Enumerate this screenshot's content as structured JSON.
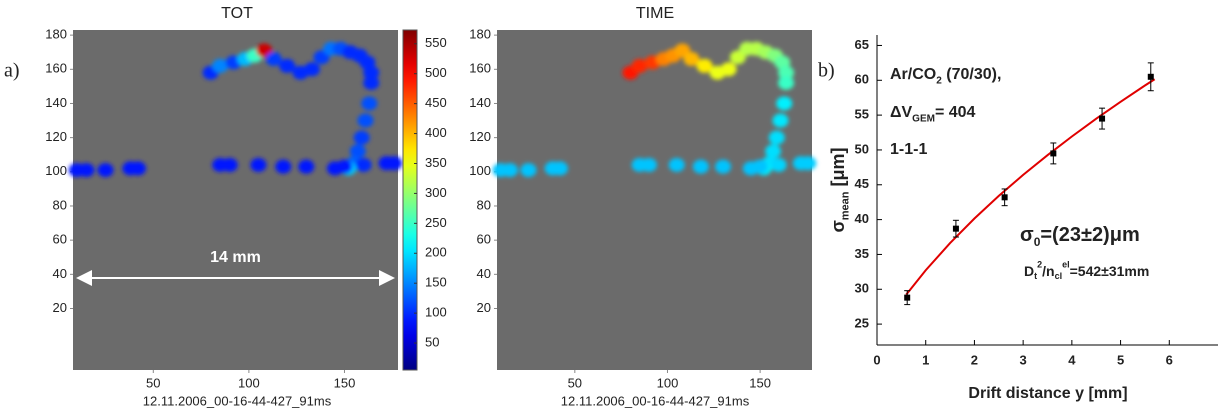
{
  "chart_data": [
    {
      "type": "heatmap",
      "title": "TOT",
      "label": "a)",
      "x_label": "12.11.2006_00-16-44-427_91ms",
      "xlim": [
        8,
        178
      ],
      "ylim": [
        -16,
        183
      ],
      "xticks": [
        50,
        100,
        150
      ],
      "yticks": [
        20,
        40,
        60,
        80,
        100,
        120,
        140,
        160,
        180
      ],
      "background": "#6b6b6b",
      "colormap": "jet",
      "clim": [
        5,
        573
      ],
      "colorbar_ticks": [
        50,
        100,
        150,
        200,
        250,
        300,
        350,
        400,
        450,
        500,
        550
      ],
      "annotations": [
        {
          "text": "14 mm"
        }
      ],
      "x": [
        80,
        85,
        92,
        98,
        103,
        108,
        113,
        120,
        127,
        133,
        138,
        143,
        148,
        153,
        158,
        162,
        164,
        164,
        163,
        161,
        159,
        157,
        155,
        152,
        10,
        15,
        25,
        38,
        42,
        85,
        90,
        105,
        118,
        130,
        145,
        150,
        160,
        172,
        176
      ],
      "y": [
        158,
        162,
        164,
        166,
        168,
        171,
        166,
        162,
        158,
        160,
        167,
        172,
        172,
        170,
        168,
        164,
        158,
        152,
        140,
        130,
        120,
        112,
        105,
        102,
        101,
        101,
        101,
        102,
        102,
        104,
        104,
        104,
        103,
        103,
        102,
        103,
        104,
        105,
        105
      ],
      "values": [
        100,
        150,
        110,
        180,
        250,
        530,
        110,
        100,
        100,
        100,
        110,
        140,
        120,
        100,
        100,
        100,
        100,
        100,
        120,
        120,
        110,
        120,
        130,
        190,
        90,
        90,
        90,
        90,
        90,
        90,
        90,
        90,
        90,
        90,
        90,
        90,
        100,
        90,
        90
      ]
    },
    {
      "type": "heatmap",
      "title": "TIME",
      "x_label": "12.11.2006_00-16-44-427_91ms",
      "xlim": [
        8,
        178
      ],
      "ylim": [
        -16,
        183
      ],
      "xticks": [
        50,
        100,
        150
      ],
      "yticks": [
        20,
        40,
        60,
        80,
        100,
        120,
        140,
        160,
        180
      ],
      "background": "#6b6b6b",
      "colormap": "jet",
      "clim": [
        5,
        573
      ],
      "x": [
        80,
        85,
        92,
        98,
        103,
        108,
        113,
        120,
        127,
        133,
        138,
        143,
        148,
        153,
        158,
        162,
        164,
        164,
        163,
        161,
        159,
        157,
        155,
        152,
        10,
        15,
        25,
        38,
        42,
        85,
        90,
        105,
        118,
        130,
        145,
        150,
        160,
        172,
        176
      ],
      "y": [
        158,
        162,
        164,
        166,
        168,
        171,
        166,
        162,
        158,
        160,
        167,
        172,
        172,
        170,
        168,
        164,
        158,
        152,
        140,
        130,
        120,
        112,
        105,
        102,
        101,
        101,
        101,
        102,
        102,
        104,
        104,
        104,
        103,
        103,
        102,
        103,
        104,
        105,
        105
      ],
      "values": [
        490,
        480,
        470,
        430,
        420,
        410,
        400,
        370,
        350,
        350,
        330,
        320,
        320,
        310,
        290,
        270,
        260,
        250,
        210,
        205,
        200,
        200,
        200,
        210,
        185,
        185,
        185,
        185,
        185,
        185,
        185,
        185,
        185,
        185,
        185,
        185,
        195,
        190,
        190
      ]
    },
    {
      "type": "scatter",
      "label": "b)",
      "x_label": "Drift distance y [mm]",
      "y_label": [
        {
          "text": "σ"
        },
        {
          "text": "mean",
          "shift": "sub"
        },
        {
          "text": " [μm]"
        }
      ],
      "xlim": [
        0,
        7
      ],
      "ylim": [
        22,
        66.5
      ],
      "xticks": [
        0,
        1,
        2,
        3,
        4,
        5,
        6
      ],
      "yticks": [
        25,
        30,
        35,
        40,
        45,
        50,
        55,
        60,
        65
      ],
      "x": [
        0.62,
        1.62,
        2.62,
        3.62,
        4.62,
        5.62
      ],
      "values": [
        28.8,
        38.7,
        43.2,
        49.5,
        54.5,
        60.5
      ],
      "errors": [
        1,
        1.2,
        1.2,
        1.5,
        1.5,
        2
      ],
      "color": "#000000",
      "fit": {
        "x": [
          0.6,
          1,
          1.5,
          2,
          2.5,
          3,
          3.5,
          4,
          4.5,
          5,
          5.5,
          5.7
        ],
        "values": [
          29.23,
          32.73,
          36.63,
          40.16,
          43.41,
          46.42,
          49.25,
          51.93,
          54.48,
          56.91,
          59.25,
          60.15
        ],
        "color": "#e00000"
      },
      "annotations": [
        {
          "parts": [
            {
              "text": "Ar/CO"
            },
            {
              "text": "2",
              "shift": "sub"
            },
            {
              "text": " (70/30),"
            }
          ]
        },
        {
          "parts": [
            {
              "text": "ΔV"
            },
            {
              "text": "GEM",
              "shift": "sub"
            },
            {
              "text": "= 404"
            }
          ]
        },
        {
          "parts": [
            {
              "text": "1-1-1"
            }
          ]
        },
        {
          "parts": [
            {
              "text": "σ"
            },
            {
              "text": "0",
              "shift": "sub"
            },
            {
              "text": "=(23±2)μm"
            }
          ]
        },
        {
          "parts": [
            {
              "text": "D"
            },
            {
              "text": "t",
              "shift": "sub"
            },
            {
              "text": "2",
              "shift": "sup"
            },
            {
              "text": "/n"
            },
            {
              "text": "cl",
              "shift": "sub"
            },
            {
              "text": "el",
              "shift": "sup"
            },
            {
              "text": "=542±31mm"
            }
          ]
        }
      ]
    }
  ]
}
